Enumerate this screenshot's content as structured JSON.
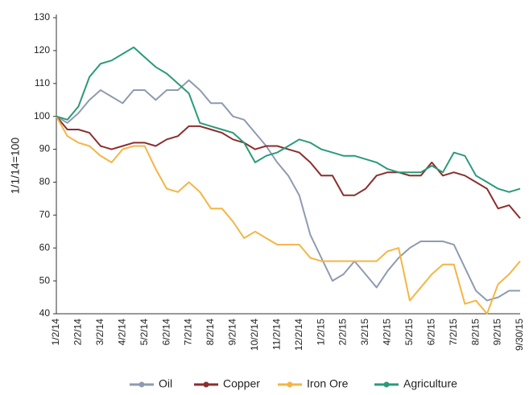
{
  "chart_data": {
    "type": "line",
    "y_label": "1/1/14=100",
    "categories": [
      "1/2/14",
      null,
      "2/2/14",
      null,
      "3/2/14",
      null,
      "4/2/14",
      null,
      "5/2/14",
      null,
      "6/2/14",
      null,
      "7/2/14",
      null,
      "8/2/14",
      null,
      "9/2/14",
      null,
      "10/2/14",
      null,
      "11/2/14",
      null,
      "12/2/14",
      null,
      "1/2/15",
      null,
      "2/2/15",
      null,
      "3/2/15",
      null,
      "4/2/15",
      null,
      "5/2/15",
      null,
      "6/2/15",
      null,
      "7/2/15",
      null,
      "8/2/15",
      null,
      "9/2/15",
      null,
      "9/30/15"
    ],
    "series": [
      {
        "name": "Oil",
        "color": "#8e9bb0",
        "values": [
          100,
          98,
          101,
          105,
          108,
          106,
          104,
          108,
          108,
          105,
          108,
          108,
          111,
          108,
          104,
          104,
          100,
          99,
          95,
          91,
          86,
          82,
          76,
          64,
          57,
          50,
          52,
          56,
          52,
          48,
          53,
          57,
          60,
          62,
          62,
          62,
          61,
          54,
          47,
          44,
          45,
          47,
          47
        ]
      },
      {
        "name": "Copper",
        "color": "#8b2e2e",
        "values": [
          100,
          96,
          96,
          95,
          91,
          90,
          91,
          92,
          92,
          91,
          93,
          94,
          97,
          97,
          96,
          95,
          93,
          92,
          90,
          91,
          91,
          90,
          89,
          86,
          82,
          82,
          76,
          76,
          78,
          82,
          83,
          83,
          82,
          82,
          86,
          82,
          83,
          82,
          80,
          78,
          72,
          73,
          69
        ]
      },
      {
        "name": "Iron Ore",
        "color": "#f5b544",
        "values": [
          100,
          94,
          92,
          91,
          88,
          86,
          90,
          91,
          91,
          84,
          78,
          77,
          80,
          77,
          72,
          72,
          68,
          63,
          65,
          63,
          61,
          61,
          61,
          57,
          56,
          56,
          56,
          56,
          56,
          56,
          59,
          60,
          44,
          48,
          52,
          55,
          55,
          43,
          44,
          40,
          49,
          52,
          56
        ]
      },
      {
        "name": "Agriculture",
        "color": "#2a9a7a",
        "values": [
          100,
          99,
          103,
          112,
          116,
          117,
          119,
          121,
          118,
          115,
          113,
          110,
          107,
          98,
          97,
          96,
          95,
          92,
          86,
          88,
          89,
          91,
          93,
          92,
          90,
          89,
          88,
          88,
          87,
          86,
          84,
          83,
          83,
          83,
          85,
          83,
          89,
          88,
          82,
          80,
          78,
          77,
          78
        ]
      }
    ],
    "ylim": [
      40,
      130
    ],
    "yticks": [
      40,
      50,
      60,
      70,
      80,
      90,
      100,
      110,
      120,
      130
    ],
    "grid": false,
    "legend": "bottom"
  }
}
